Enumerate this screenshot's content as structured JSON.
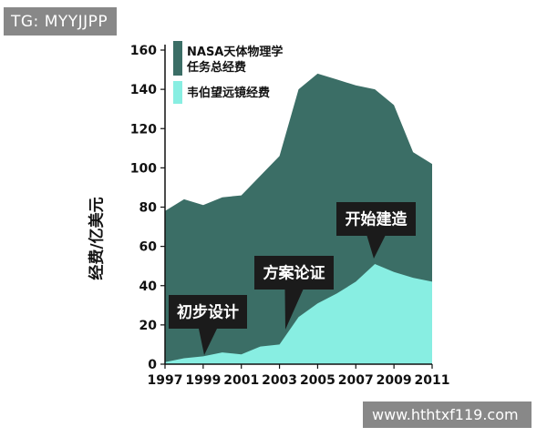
{
  "watermarks": {
    "top": "TG: MYYJJPP",
    "bottom": "www.hthtxf119.com"
  },
  "chart_data": {
    "type": "area",
    "ylabel": "经费/亿美元",
    "xlabel": "",
    "title": "",
    "ylim": [
      0,
      160
    ],
    "yticks": [
      0,
      20,
      40,
      60,
      80,
      100,
      120,
      140,
      160
    ],
    "xlim": [
      1997,
      2011
    ],
    "xticks": [
      1997,
      1999,
      2001,
      2003,
      2005,
      2007,
      2009,
      2011
    ],
    "x": [
      1997,
      1998,
      1999,
      2000,
      2001,
      2002,
      2003,
      2004,
      2005,
      2006,
      2007,
      2008,
      2009,
      2010,
      2011
    ],
    "series": [
      {
        "name": "NASA天体物理学任务总经费",
        "color": "#3b6e66",
        "values": [
          78,
          84,
          81,
          85,
          86,
          96,
          106,
          140,
          148,
          145,
          142,
          140,
          132,
          108,
          102
        ]
      },
      {
        "name": "韦伯望远镜经费",
        "color": "#88eee2",
        "values": [
          1,
          3,
          4,
          6,
          5,
          9,
          10,
          24,
          31,
          36,
          42,
          51,
          47,
          44,
          42
        ]
      }
    ],
    "legend_position": "top-left",
    "annotations": [
      {
        "text": "初步设计",
        "x": 1999.5,
        "y": 2
      },
      {
        "text": "方案论证",
        "x": 2003.5,
        "y": 22
      },
      {
        "text": "开始建造",
        "x": 2008,
        "y": 50
      }
    ]
  }
}
